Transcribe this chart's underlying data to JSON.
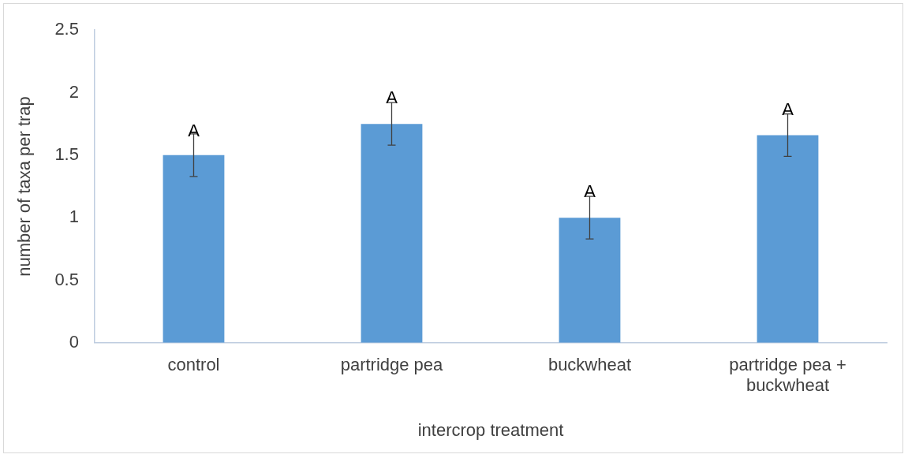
{
  "chart_data": {
    "type": "bar",
    "xlabel": "intercrop treatment",
    "ylabel": "number of taxa per trap",
    "categories": [
      "control",
      "partridge pea",
      "buckwheat",
      "partridge pea + buckwheat"
    ],
    "values": [
      1.5,
      1.75,
      1.0,
      1.66
    ],
    "color": "#5b9bd5",
    "errors": [
      0.17,
      0.17,
      0.17,
      0.17
    ],
    "ylim": [
      0,
      2.5
    ],
    "yticks": [
      0,
      0.5,
      1,
      1.5,
      2,
      2.5
    ],
    "grid": false,
    "legend": false,
    "annotations": [
      {
        "text": "A",
        "x": "control",
        "y": 1.66
      },
      {
        "text": "A",
        "x": "partridge pea",
        "y": 1.92
      },
      {
        "text": "A",
        "x": "buckwheat",
        "y": 1.17
      },
      {
        "text": "A",
        "x": "partridge pea + buckwheat",
        "y": 1.83
      }
    ]
  }
}
